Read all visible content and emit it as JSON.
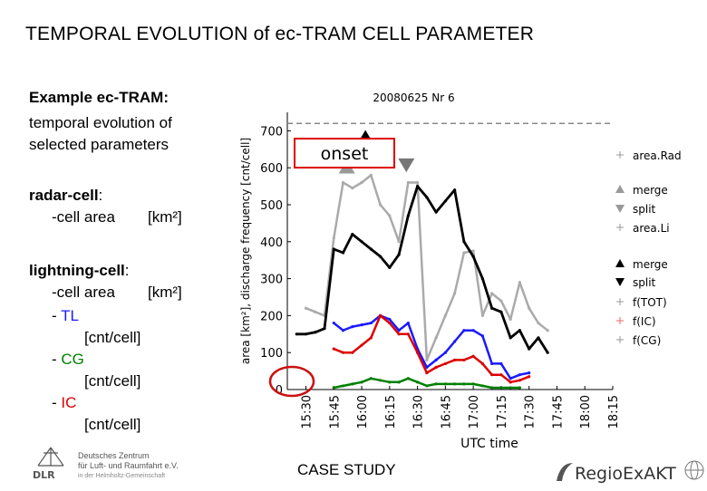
{
  "slide": {
    "title": "TEMPORAL EVOLUTION of ec-TRAM CELL PARAMETER",
    "example_heading": "Example ec-TRAM:",
    "example_line1": "temporal evolution of",
    "example_line2": "selected parameters",
    "radar_heading": "radar-cell",
    "radar_colon": ":",
    "radar_item": "-cell area",
    "radar_unit": "[km²]",
    "lightning_heading": "lightning-cell",
    "lightning_colon": ":",
    "lightning_area": "-cell area",
    "lightning_area_unit": "[km²]",
    "tl_prefix": "- ",
    "tl_label": "TL",
    "tl_unit": "[cnt/cell]",
    "cg_prefix": "- ",
    "cg_label": "CG",
    "cg_unit": "[cnt/cell]",
    "ic_prefix": "- ",
    "ic_label": "IC",
    "ic_unit": "[cnt/cell]",
    "footer_text": "CASE STUDY",
    "dlr_logo_line1": "Deutsches Zentrum",
    "dlr_logo_line2": "für Luft- und Raumfahrt e.V.",
    "dlr_logo_line3": "in der Helmholtz-Gemeinschaft",
    "dlr_logo_mark": "DLR",
    "regio_logo": "RegioExAKT"
  },
  "chart_data": {
    "type": "line",
    "title": "20080625 Nr 6",
    "xlabel": "UTC time",
    "ylabel": "area [km²], discharge frequency [cnt/cell]",
    "ylim": [
      0,
      750
    ],
    "yticks": [
      0,
      100,
      200,
      300,
      400,
      500,
      600,
      700
    ],
    "xlim": [
      "15:20",
      "18:15"
    ],
    "xtick_labels": [
      "15:30",
      "15:45",
      "16:00",
      "16:15",
      "16:30",
      "16:45",
      "17:00",
      "17:15",
      "17:30",
      "17:45",
      "18:00",
      "18:15"
    ],
    "reference_line": 720,
    "annotation": "onset",
    "legend_placement": "right",
    "legend": [
      {
        "marker": "+",
        "label": "area.Rad",
        "color": "#999999"
      },
      {
        "marker": "triangle-up",
        "label": "merge",
        "color": "#999999"
      },
      {
        "marker": "triangle-down",
        "label": "split",
        "color": "#999999"
      },
      {
        "marker": "+",
        "label": "area.Li",
        "color": "#999999"
      },
      {
        "marker": "triangle-up",
        "label": "merge",
        "color": "#000000"
      },
      {
        "marker": "triangle-down",
        "label": "split",
        "color": "#000000"
      },
      {
        "marker": "+",
        "label": "f(TOT)",
        "color": "#999999"
      },
      {
        "marker": "+",
        "label": "f(IC)",
        "color": "#ee6666"
      },
      {
        "marker": "+",
        "label": "f(CG)",
        "color": "#999999"
      }
    ],
    "x": [
      "15:25",
      "15:30",
      "15:35",
      "15:40",
      "15:45",
      "15:50",
      "15:55",
      "16:00",
      "16:05",
      "16:10",
      "16:15",
      "16:20",
      "16:25",
      "16:30",
      "16:35",
      "16:40",
      "16:45",
      "16:50",
      "16:55",
      "17:00",
      "17:05",
      "17:10",
      "17:15",
      "17:20",
      "17:25",
      "17:30",
      "17:35",
      "17:40"
    ],
    "series": [
      {
        "color": "#aaaaaa",
        "width": 2.5,
        "values": [
          null,
          220,
          210,
          200,
          410,
          560,
          545,
          560,
          580,
          500,
          470,
          400,
          560,
          560,
          80,
          140,
          200,
          260,
          370,
          375,
          200,
          260,
          240,
          190,
          290,
          220,
          180,
          160
        ]
      },
      {
        "color": "#000000",
        "width": 2.8,
        "values": [
          150,
          150,
          155,
          165,
          380,
          370,
          420,
          400,
          380,
          360,
          330,
          365,
          470,
          550,
          520,
          480,
          510,
          540,
          400,
          360,
          300,
          220,
          210,
          140,
          160,
          110,
          140,
          100
        ]
      },
      {
        "color": "#1a1aff",
        "width": 2.5,
        "values": [
          null,
          null,
          null,
          null,
          180,
          160,
          170,
          175,
          180,
          200,
          190,
          160,
          180,
          110,
          60,
          80,
          100,
          130,
          160,
          160,
          145,
          70,
          70,
          30,
          40,
          45,
          null,
          null
        ]
      },
      {
        "color": "#dd0000",
        "width": 2.5,
        "values": [
          null,
          null,
          null,
          null,
          110,
          100,
          100,
          120,
          140,
          200,
          180,
          150,
          150,
          100,
          45,
          60,
          70,
          80,
          80,
          90,
          70,
          40,
          40,
          20,
          25,
          35,
          null,
          null
        ]
      },
      {
        "color": "#008000",
        "width": 2.5,
        "values": [
          null,
          null,
          null,
          null,
          5,
          10,
          15,
          20,
          30,
          25,
          20,
          20,
          30,
          20,
          10,
          15,
          15,
          15,
          15,
          15,
          10,
          5,
          5,
          5,
          5,
          null,
          null,
          null
        ]
      }
    ],
    "markers": [
      {
        "x": "15:52",
        "y": 600,
        "shape": "triangle-up",
        "color": "#999999"
      },
      {
        "x": "16:02",
        "y": 680,
        "shape": "triangle-up",
        "color": "#000000"
      },
      {
        "x": "16:24",
        "y": 610,
        "shape": "triangle-down",
        "color": "#777777"
      }
    ]
  }
}
